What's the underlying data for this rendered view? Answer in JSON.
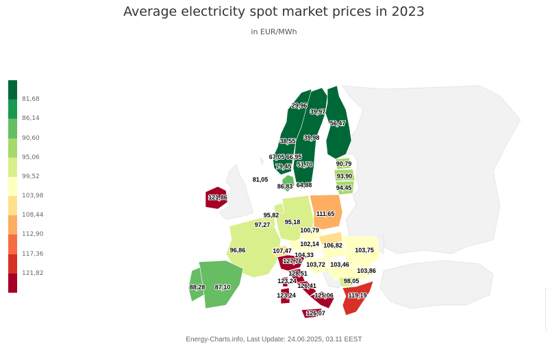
{
  "header": {
    "title": "Average electricity spot market prices in 2023",
    "subtitle": "in EUR/MWh"
  },
  "legend": {
    "colors": [
      "#006837",
      "#1a9850",
      "#66bd63",
      "#a6d96a",
      "#d9ef8b",
      "#ffffbf",
      "#fee08b",
      "#fdae61",
      "#f46d43",
      "#d73027",
      "#a50026"
    ],
    "labels": [
      "81,68",
      "86,14",
      "90,60",
      "95,06",
      "99,52",
      "103,98",
      "108,44",
      "112,90",
      "117,36",
      "121,82"
    ]
  },
  "credits": "Energy-Charts.info, Last Update: 24.06.2025, 03.11 EEST",
  "chart_data": {
    "type": "choropleth",
    "title": "Average electricity spot market prices in 2023",
    "subtitle": "in EUR/MWh",
    "unit": "EUR/MWh",
    "color_scale_breaks": [
      81.68,
      86.14,
      90.6,
      95.06,
      99.52,
      103.98,
      108.44,
      112.9,
      117.36,
      121.82
    ],
    "regions": [
      {
        "name": "NO4",
        "value": 29.96,
        "label": "29,96"
      },
      {
        "name": "SE1",
        "value": 39.97,
        "label": "39,97"
      },
      {
        "name": "FI",
        "value": 56.47,
        "label": "56,47"
      },
      {
        "name": "NO3",
        "value": 38.55,
        "label": "38,55"
      },
      {
        "name": "SE2",
        "value": 39.98,
        "label": "39,98"
      },
      {
        "name": "NO5",
        "value": 67.05,
        "label": "67,05"
      },
      {
        "name": "NO1",
        "value": 66.95,
        "label": "66,95"
      },
      {
        "name": "NO2",
        "value": 79.45,
        "label": "79,45"
      },
      {
        "name": "SE3",
        "value": 51.7,
        "label": "51,70"
      },
      {
        "name": "NO2-NSL",
        "value": 81.05,
        "label": "81,05"
      },
      {
        "name": "DK1",
        "value": 86.83,
        "label": "86,83"
      },
      {
        "name": "SE4",
        "value": 64.88,
        "label": "64,88"
      },
      {
        "name": "EE",
        "value": 90.79,
        "label": "90,79"
      },
      {
        "name": "LV",
        "value": 93.9,
        "label": "93,90"
      },
      {
        "name": "LT",
        "value": 94.45,
        "label": "94,45"
      },
      {
        "name": "IE",
        "value": 121.86,
        "label": "121,86"
      },
      {
        "name": "NL",
        "value": 95.82,
        "label": "95,82"
      },
      {
        "name": "BE",
        "value": 97.27,
        "label": "97,27"
      },
      {
        "name": "DE-LU",
        "value": 95.18,
        "label": "95,18"
      },
      {
        "name": "PL",
        "value": 111.65,
        "label": "111,65"
      },
      {
        "name": "CZ",
        "value": 100.79,
        "label": "100,79"
      },
      {
        "name": "FR",
        "value": 96.86,
        "label": "96,86"
      },
      {
        "name": "AT",
        "value": 102.14,
        "label": "102,14"
      },
      {
        "name": "SK",
        "value": 106.82,
        "label": "106,82"
      },
      {
        "name": "RO",
        "value": 103.75,
        "label": "103,75"
      },
      {
        "name": "CH",
        "value": 107.47,
        "label": "107,47"
      },
      {
        "name": "SI",
        "value": 104.33,
        "label": "104,33"
      },
      {
        "name": "IT-North",
        "value": 127.76,
        "label": "127,76"
      },
      {
        "name": "HR",
        "value": 103.72,
        "label": "103,72"
      },
      {
        "name": "RS",
        "value": 103.46,
        "label": "103,46"
      },
      {
        "name": "BG",
        "value": 103.86,
        "label": "103,86"
      },
      {
        "name": "IT-CNorth",
        "value": 128.51,
        "label": "128,51"
      },
      {
        "name": "MK",
        "value": 98.05,
        "label": "98,05"
      },
      {
        "name": "IT-Sardinia",
        "value": 123.24,
        "label": "123,24"
      },
      {
        "name": "IT-CSouth",
        "value": 126.41,
        "label": "126,41"
      },
      {
        "name": "IT-South",
        "value": 125.06,
        "label": "125,06"
      },
      {
        "name": "GR",
        "value": 119.19,
        "label": "119,19"
      },
      {
        "name": "IT-Corsica",
        "value": 123.24,
        "label": "123,24"
      },
      {
        "name": "IT-Sicily",
        "value": 126.07,
        "label": "126,07"
      },
      {
        "name": "PT",
        "value": 88.28,
        "label": "88,28"
      },
      {
        "name": "ES",
        "value": 87.1,
        "label": "87,10"
      },
      {
        "name": "HU",
        "value": 103.72,
        "label": "103,72"
      }
    ]
  }
}
